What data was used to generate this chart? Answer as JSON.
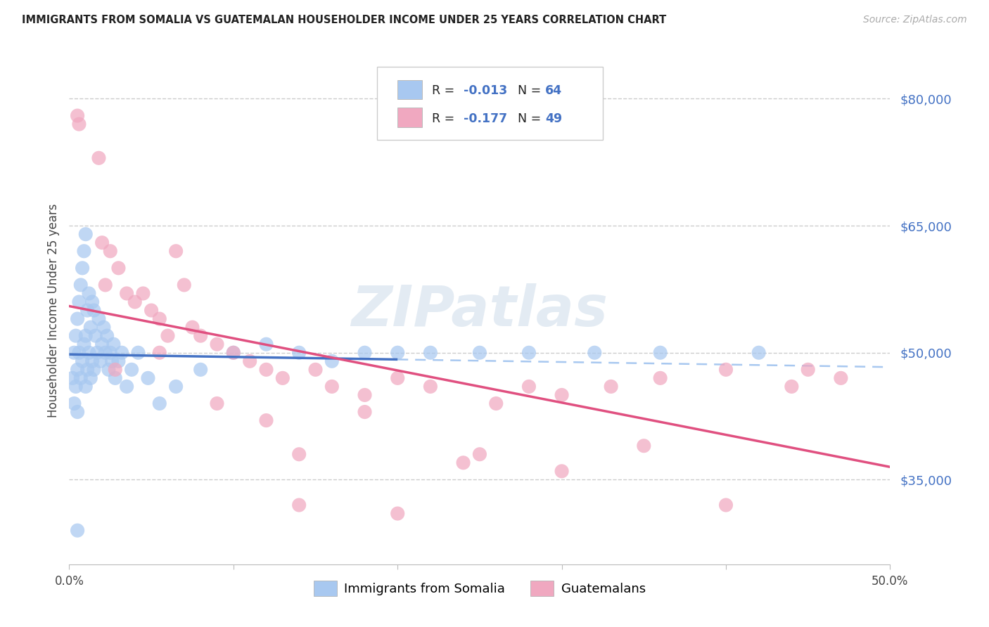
{
  "title": "IMMIGRANTS FROM SOMALIA VS GUATEMALAN HOUSEHOLDER INCOME UNDER 25 YEARS CORRELATION CHART",
  "source": "Source: ZipAtlas.com",
  "ylabel": "Householder Income Under 25 years",
  "y_ticks": [
    35000,
    50000,
    65000,
    80000
  ],
  "y_tick_labels": [
    "$35,000",
    "$50,000",
    "$65,000",
    "$80,000"
  ],
  "x_min": 0.0,
  "x_max": 50.0,
  "y_min": 25000,
  "y_max": 85000,
  "legend_r1": "-0.013",
  "legend_n1": "64",
  "legend_r2": "-0.177",
  "legend_n2": "49",
  "legend_label1": "Immigrants from Somalia",
  "legend_label2": "Guatemalans",
  "somalia_color": "#a8c8f0",
  "guatemala_color": "#f0a8c0",
  "somalia_line_color": "#4472c4",
  "guatemala_line_color": "#e05080",
  "dashed_line_color": "#a8c8f0",
  "watermark": "ZIPatlas",
  "watermark_color": "#c8d8e8",
  "legend_text_color": "#4472c4",
  "soma_intercept": 49800,
  "soma_slope": -30,
  "guat_intercept": 55500,
  "guat_slope": -380,
  "soma_solid_end": 20.0,
  "soma_x": [
    0.2,
    0.3,
    0.3,
    0.4,
    0.4,
    0.5,
    0.5,
    0.5,
    0.6,
    0.6,
    0.7,
    0.7,
    0.8,
    0.8,
    0.9,
    0.9,
    1.0,
    1.0,
    1.0,
    1.1,
    1.1,
    1.2,
    1.2,
    1.3,
    1.3,
    1.4,
    1.4,
    1.5,
    1.5,
    1.6,
    1.7,
    1.8,
    1.9,
    2.0,
    2.1,
    2.2,
    2.3,
    2.4,
    2.5,
    2.6,
    2.7,
    2.8,
    3.0,
    3.2,
    3.5,
    3.8,
    4.2,
    4.8,
    5.5,
    6.5,
    8.0,
    10.0,
    12.0,
    14.0,
    16.0,
    18.0,
    20.0,
    22.0,
    25.0,
    28.0,
    32.0,
    36.0,
    42.0,
    0.5
  ],
  "soma_y": [
    47000,
    50000,
    44000,
    52000,
    46000,
    54000,
    48000,
    43000,
    56000,
    50000,
    58000,
    47000,
    60000,
    49000,
    62000,
    51000,
    64000,
    52000,
    46000,
    55000,
    48000,
    57000,
    50000,
    53000,
    47000,
    56000,
    49000,
    55000,
    48000,
    52000,
    50000,
    54000,
    49000,
    51000,
    53000,
    50000,
    52000,
    48000,
    50000,
    49000,
    51000,
    47000,
    49000,
    50000,
    46000,
    48000,
    50000,
    47000,
    44000,
    46000,
    48000,
    50000,
    51000,
    50000,
    49000,
    50000,
    50000,
    50000,
    50000,
    50000,
    50000,
    50000,
    50000,
    29000
  ],
  "guat_x": [
    0.5,
    0.6,
    1.8,
    2.0,
    2.5,
    3.0,
    3.5,
    4.0,
    4.5,
    5.0,
    5.5,
    6.0,
    6.5,
    7.0,
    7.5,
    8.0,
    9.0,
    10.0,
    11.0,
    12.0,
    13.0,
    14.0,
    15.0,
    16.0,
    18.0,
    20.0,
    22.0,
    24.0,
    26.0,
    28.0,
    30.0,
    33.0,
    36.0,
    40.0,
    44.0,
    47.0,
    2.2,
    2.8,
    5.5,
    9.0,
    14.0,
    20.0,
    25.0,
    30.0,
    35.0,
    40.0,
    45.0,
    12.0,
    18.0
  ],
  "guat_y": [
    78000,
    77000,
    73000,
    63000,
    62000,
    60000,
    57000,
    56000,
    57000,
    55000,
    54000,
    52000,
    62000,
    58000,
    53000,
    52000,
    51000,
    50000,
    49000,
    48000,
    47000,
    38000,
    48000,
    46000,
    45000,
    47000,
    46000,
    37000,
    44000,
    46000,
    45000,
    46000,
    47000,
    48000,
    46000,
    47000,
    58000,
    48000,
    50000,
    44000,
    32000,
    31000,
    38000,
    36000,
    39000,
    32000,
    48000,
    42000,
    43000
  ]
}
